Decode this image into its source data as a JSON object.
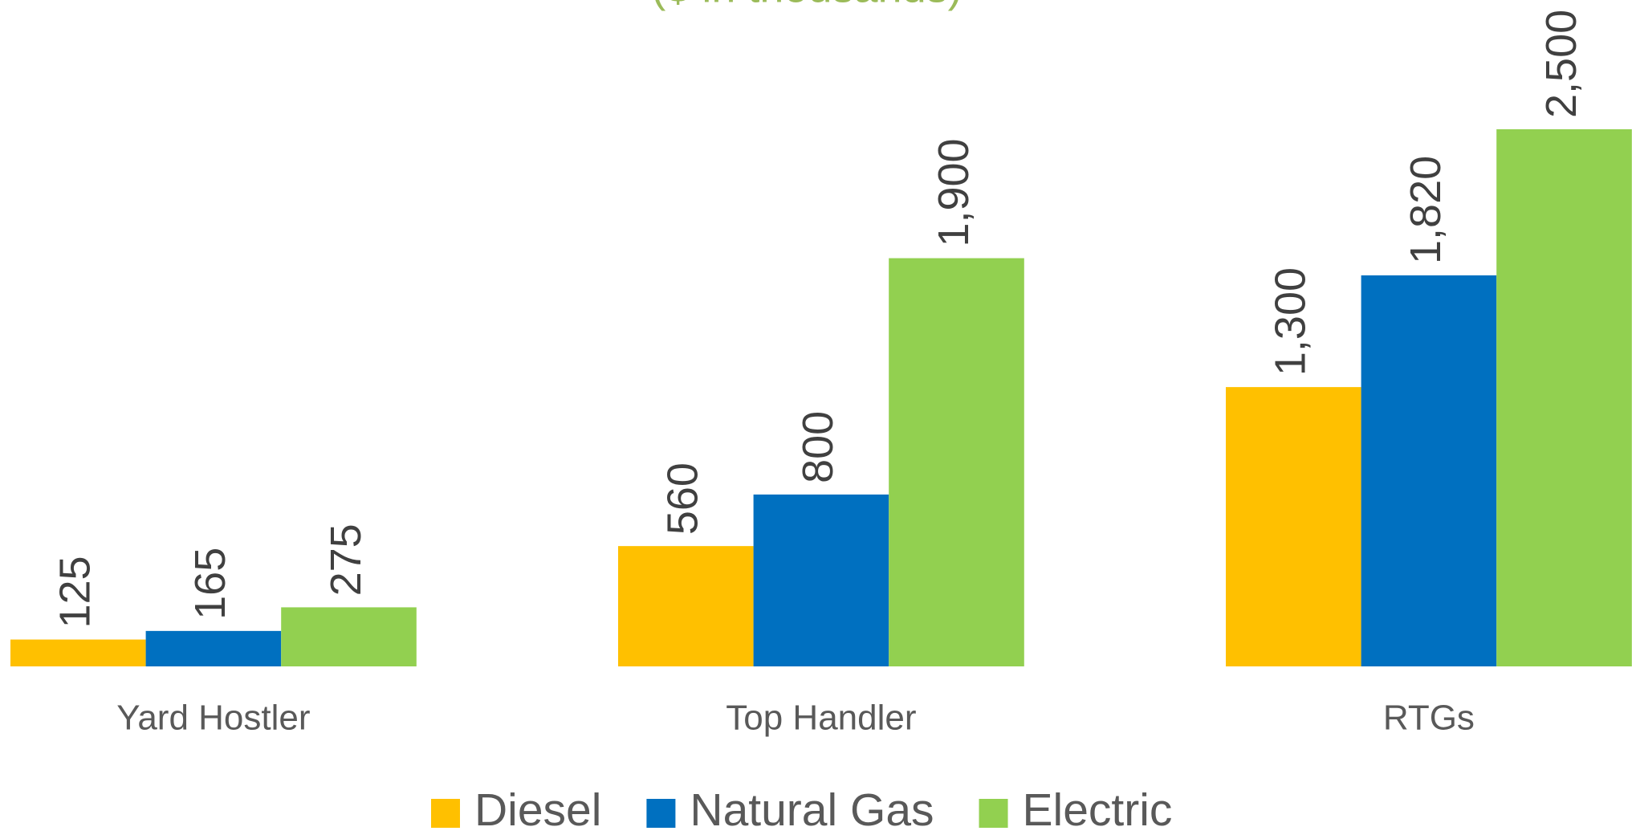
{
  "chart_data": {
    "type": "bar",
    "subtitle": "($ in thousands)",
    "categories": [
      "Yard Hostler",
      "Top Handler",
      "RTGs"
    ],
    "series": [
      {
        "name": "Diesel",
        "color": "#FFC000",
        "values": [
          125,
          560,
          1300
        ],
        "value_labels": [
          "125",
          "560",
          "1,300"
        ]
      },
      {
        "name": "Natural Gas",
        "color": "#0070C0",
        "values": [
          165,
          800,
          1820
        ],
        "value_labels": [
          "165",
          "800",
          "1,820"
        ]
      },
      {
        "name": "Electric",
        "color": "#92D050",
        "values": [
          275,
          1900,
          2500
        ],
        "value_labels": [
          "275",
          "1,900",
          "2,500"
        ]
      }
    ],
    "legend": "bottom"
  }
}
